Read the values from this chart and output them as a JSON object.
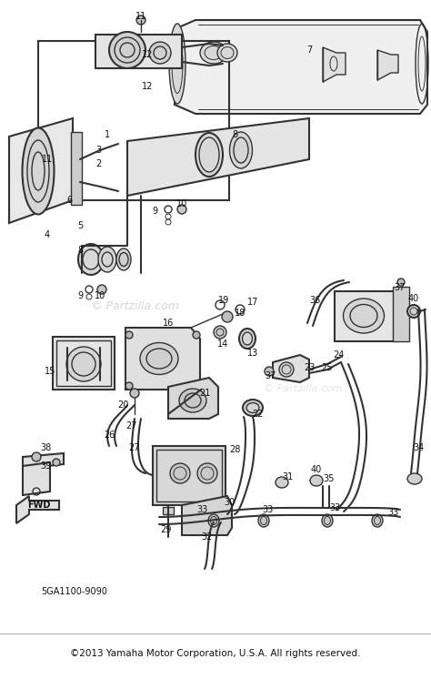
{
  "copyright": "©2013 Yamaha Motor Corporation, U.S.A. All rights reserved.",
  "part_code": "5GA1100-9090",
  "watermark1": "© Partzilla.com",
  "watermark2": "© Partzilla.com",
  "bg_color": "#ffffff",
  "lc": "#333333",
  "tc": "#111111",
  "fig_width": 4.74,
  "fig_height": 7.46,
  "dpi": 100
}
